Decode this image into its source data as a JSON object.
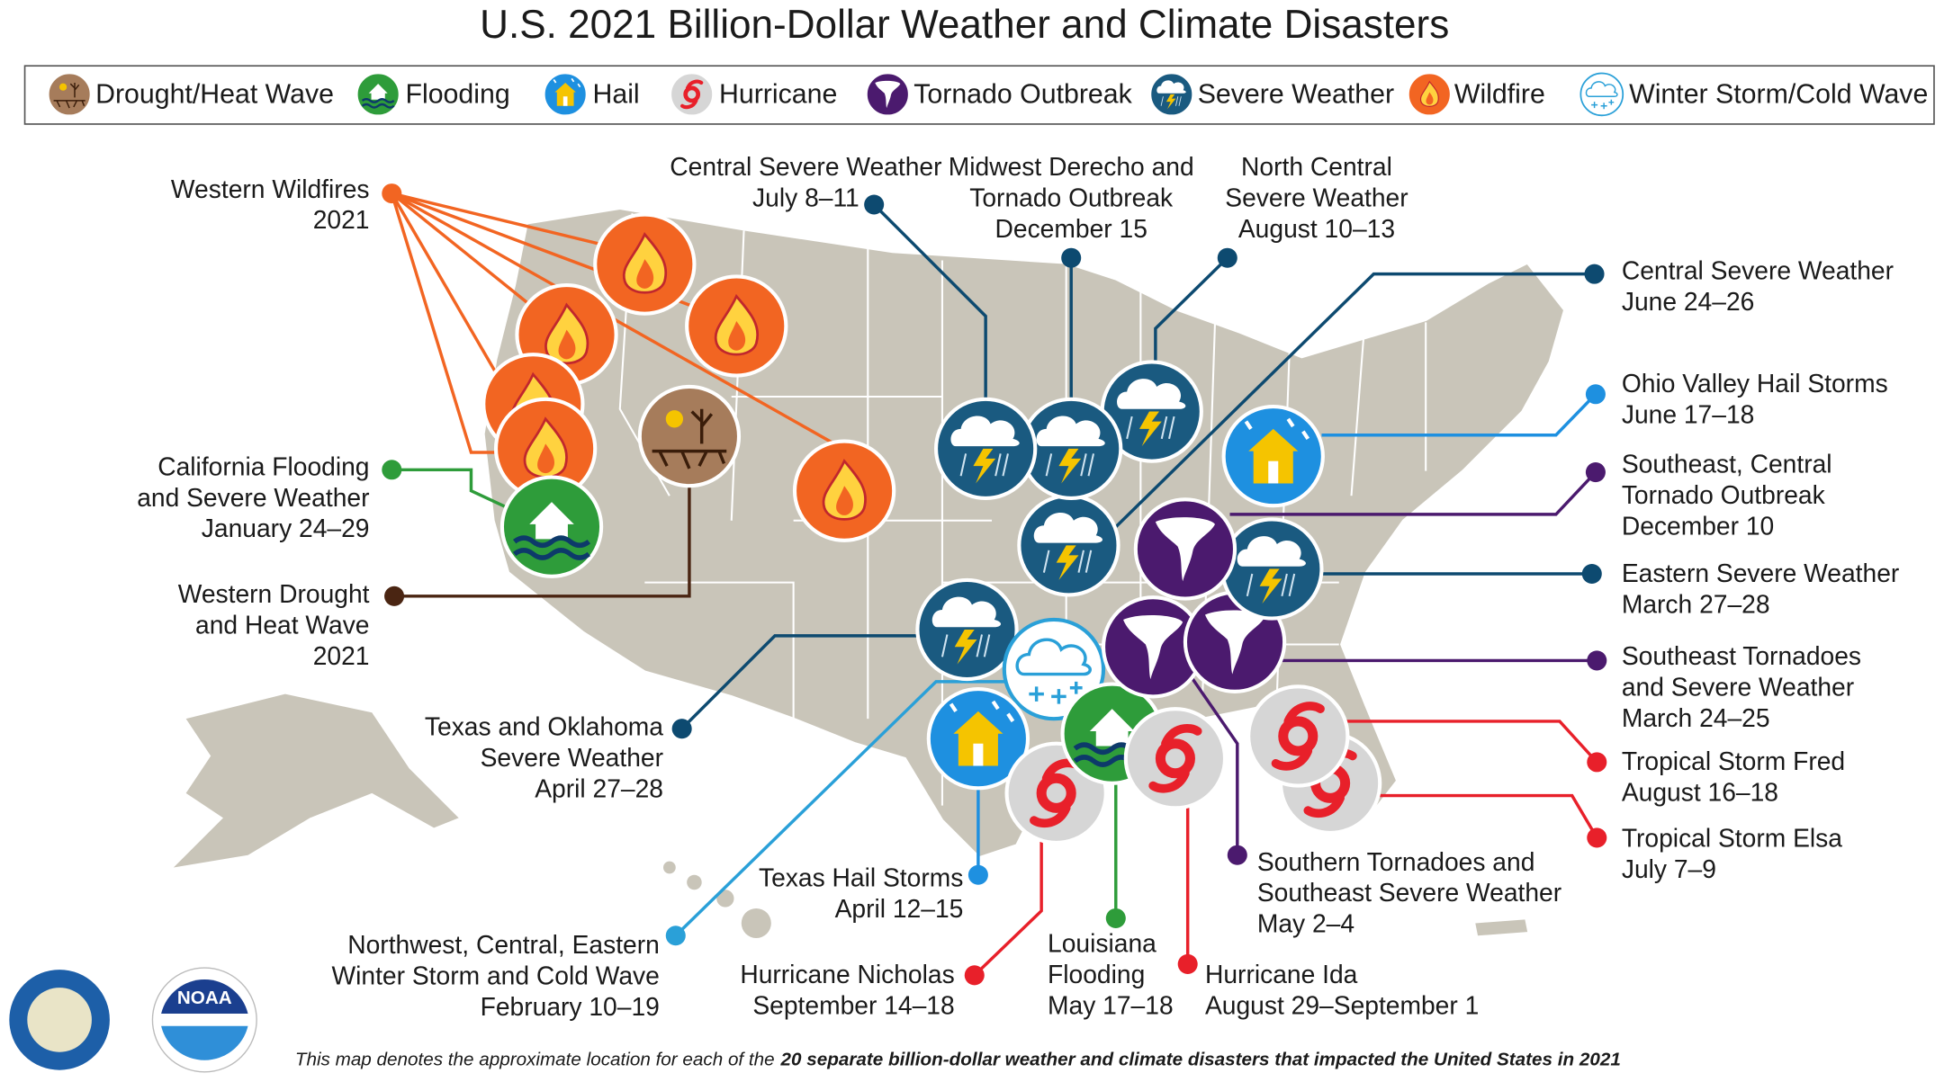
{
  "title": "U.S. 2021 Billion-Dollar Weather and Climate Disasters",
  "legend": [
    "Drought/Heat Wave",
    "Flooding",
    "Hail",
    "Hurricane",
    "Tornado Outbreak",
    "Severe Weather",
    "Wildfire",
    "Winter Storm/Cold Wave"
  ],
  "events": [
    {
      "lines": [
        "Western Wildfires",
        "2021"
      ]
    },
    {
      "lines": [
        "California Flooding",
        "and Severe Weather",
        "January 24–29"
      ]
    },
    {
      "lines": [
        "Western Drought",
        "and Heat Wave",
        "2021"
      ]
    },
    {
      "lines": [
        "Texas and Oklahoma",
        "Severe Weather",
        "April 27–28"
      ]
    },
    {
      "lines": [
        "Northwest, Central, Eastern",
        "Winter Storm and Cold Wave",
        "February 10–19"
      ]
    },
    {
      "lines": [
        "Texas Hail Storms",
        "April 12–15"
      ]
    },
    {
      "lines": [
        "Hurricane Nicholas",
        "September 14–18"
      ]
    },
    {
      "lines": [
        "Louisiana",
        "Flooding",
        "May 17–18"
      ]
    },
    {
      "lines": [
        "Hurricane Ida",
        "August 29–September 1"
      ]
    },
    {
      "lines": [
        "Southern Tornadoes and",
        "Southeast Severe Weather",
        "May 2–4"
      ]
    },
    {
      "lines": [
        "Tropical Storm Elsa",
        "July 7–9"
      ]
    },
    {
      "lines": [
        "Tropical Storm Fred",
        "August 16–18"
      ]
    },
    {
      "lines": [
        "Southeast Tornadoes",
        "and Severe Weather",
        "March 24–25"
      ]
    },
    {
      "lines": [
        "Eastern Severe Weather",
        "March 27–28"
      ]
    },
    {
      "lines": [
        "Southeast, Central",
        "Tornado Outbreak",
        "December 10"
      ]
    },
    {
      "lines": [
        "Ohio Valley Hail Storms",
        "June 17–18"
      ]
    },
    {
      "lines": [
        "Central Severe Weather",
        "June 24–26"
      ]
    },
    {
      "lines": [
        "North Central",
        "Severe Weather",
        "August 10–13"
      ]
    },
    {
      "lines": [
        "Midwest Derecho and",
        "Tornado Outbreak",
        "December 15"
      ]
    },
    {
      "lines": [
        "Central Severe Weather",
        "July 8–11"
      ]
    }
  ],
  "footnote": {
    "text": "This map denotes the approximate location for each of the",
    "bold": "20 separate billion-dollar weather and climate disasters that impacted the United States in 2021"
  },
  "logo": "NOAA"
}
